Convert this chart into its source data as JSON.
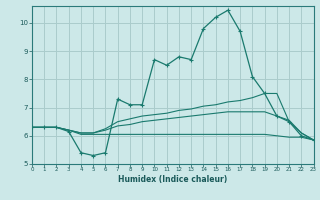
{
  "xlabel": "Humidex (Indice chaleur)",
  "background_color": "#cce8e8",
  "grid_color": "#aacccc",
  "line_color": "#1a7a6e",
  "x_values": [
    0,
    1,
    2,
    3,
    4,
    5,
    6,
    7,
    8,
    9,
    10,
    11,
    12,
    13,
    14,
    15,
    16,
    17,
    18,
    19,
    20,
    21,
    22,
    23
  ],
  "main_line": [
    6.3,
    6.3,
    6.3,
    6.15,
    5.4,
    5.3,
    5.4,
    7.3,
    7.1,
    7.1,
    8.7,
    8.5,
    8.8,
    8.7,
    9.8,
    10.2,
    10.45,
    9.7,
    8.1,
    7.5,
    6.7,
    6.5,
    6.0,
    5.85
  ],
  "line2": [
    6.3,
    6.3,
    6.3,
    6.2,
    6.1,
    6.1,
    6.25,
    6.5,
    6.6,
    6.7,
    6.75,
    6.8,
    6.9,
    6.95,
    7.05,
    7.1,
    7.2,
    7.25,
    7.35,
    7.5,
    7.5,
    6.5,
    6.1,
    5.85
  ],
  "line3": [
    6.3,
    6.3,
    6.3,
    6.2,
    6.1,
    6.1,
    6.2,
    6.35,
    6.4,
    6.5,
    6.55,
    6.6,
    6.65,
    6.7,
    6.75,
    6.8,
    6.85,
    6.85,
    6.85,
    6.85,
    6.7,
    6.55,
    6.1,
    5.85
  ],
  "line4": [
    6.3,
    6.3,
    6.3,
    6.2,
    6.05,
    6.05,
    6.05,
    6.05,
    6.05,
    6.05,
    6.05,
    6.05,
    6.05,
    6.05,
    6.05,
    6.05,
    6.05,
    6.05,
    6.05,
    6.05,
    6.0,
    5.95,
    5.95,
    5.85
  ],
  "xlim": [
    0,
    23
  ],
  "ylim": [
    5.0,
    10.6
  ],
  "yticks": [
    5,
    6,
    7,
    8,
    9,
    10
  ],
  "xticks": [
    0,
    1,
    2,
    3,
    4,
    5,
    6,
    7,
    8,
    9,
    10,
    11,
    12,
    13,
    14,
    15,
    16,
    17,
    18,
    19,
    20,
    21,
    22,
    23
  ]
}
